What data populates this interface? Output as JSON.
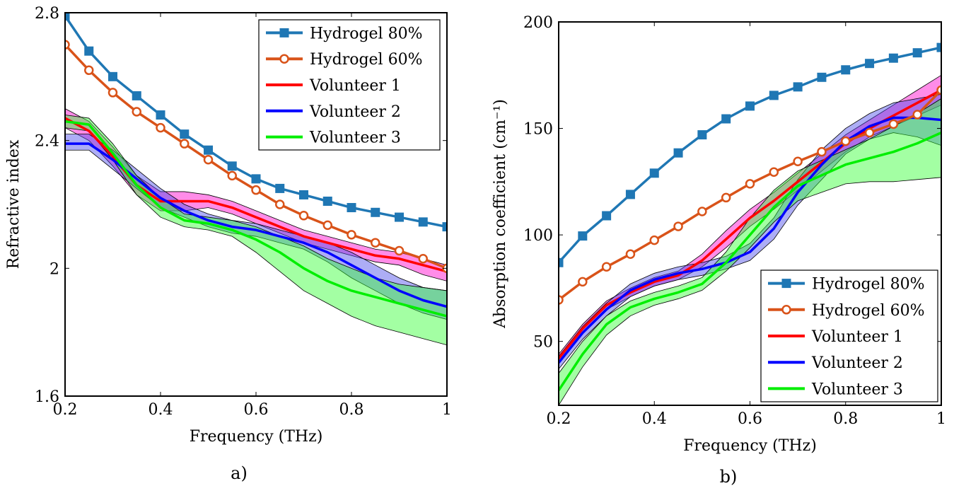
{
  "figure": {
    "label_a": "a)",
    "label_b": "b)"
  },
  "chart_data": [
    {
      "id": "a",
      "type": "line",
      "title": "",
      "xlabel": "Frequency (THz)",
      "ylabel": "Refractive index",
      "xlim": [
        0.2,
        1.0
      ],
      "ylim": [
        1.6,
        2.8
      ],
      "xticks": [
        0.2,
        0.4,
        0.6,
        0.8,
        1.0
      ],
      "xtick_labels": [
        "0.2",
        "0.4",
        "0.6",
        "0.8",
        "1"
      ],
      "yticks": [
        1.6,
        2.0,
        2.4,
        2.8
      ],
      "ytick_labels": [
        "1.6",
        "2",
        "2.4",
        "2.8"
      ],
      "grid": false,
      "legend_position": "top-right",
      "x": [
        0.2,
        0.25,
        0.3,
        0.35,
        0.4,
        0.45,
        0.5,
        0.55,
        0.6,
        0.65,
        0.7,
        0.75,
        0.8,
        0.85,
        0.9,
        0.95,
        1.0
      ],
      "series": [
        {
          "name": "Hydrogel 80%",
          "kind": "marker-square",
          "color": "#1f77b4",
          "values": [
            2.79,
            2.68,
            2.6,
            2.54,
            2.48,
            2.42,
            2.37,
            2.32,
            2.28,
            2.25,
            2.23,
            2.21,
            2.19,
            2.175,
            2.16,
            2.145,
            2.13
          ]
        },
        {
          "name": "Hydrogel 60%",
          "kind": "marker-circle",
          "color": "#d95319",
          "values": [
            2.7,
            2.62,
            2.55,
            2.49,
            2.44,
            2.39,
            2.34,
            2.29,
            2.245,
            2.2,
            2.165,
            2.135,
            2.105,
            2.08,
            2.055,
            2.03,
            2.0
          ]
        },
        {
          "name": "Volunteer 1",
          "kind": "band",
          "color": "#ff0000",
          "fill": "#ff00cc",
          "values": [
            2.47,
            2.43,
            2.35,
            2.26,
            2.21,
            2.21,
            2.21,
            2.19,
            2.16,
            2.13,
            2.1,
            2.08,
            2.06,
            2.04,
            2.03,
            2.01,
            1.99
          ],
          "upper": [
            2.5,
            2.46,
            2.38,
            2.29,
            2.24,
            2.24,
            2.23,
            2.21,
            2.18,
            2.15,
            2.12,
            2.1,
            2.08,
            2.06,
            2.05,
            2.03,
            2.01
          ],
          "lower": [
            2.44,
            2.4,
            2.32,
            2.23,
            2.18,
            2.18,
            2.19,
            2.17,
            2.14,
            2.11,
            2.08,
            2.06,
            2.04,
            2.02,
            2.01,
            1.98,
            1.96
          ]
        },
        {
          "name": "Volunteer 2",
          "kind": "band",
          "color": "#0000ff",
          "fill": "#4a4ae8",
          "values": [
            2.39,
            2.39,
            2.34,
            2.28,
            2.22,
            2.18,
            2.15,
            2.13,
            2.12,
            2.1,
            2.08,
            2.05,
            2.01,
            1.97,
            1.93,
            1.9,
            1.88
          ],
          "upper": [
            2.42,
            2.42,
            2.37,
            2.31,
            2.25,
            2.2,
            2.17,
            2.15,
            2.14,
            2.12,
            2.1,
            2.08,
            2.05,
            2.01,
            1.97,
            1.94,
            1.93
          ],
          "lower": [
            2.37,
            2.37,
            2.31,
            2.25,
            2.19,
            2.16,
            2.13,
            2.11,
            2.1,
            2.08,
            2.06,
            2.02,
            1.97,
            1.93,
            1.89,
            1.86,
            1.84
          ]
        },
        {
          "name": "Volunteer 3",
          "kind": "band",
          "color": "#00ee00",
          "fill": "#33ff33",
          "values": [
            2.46,
            2.45,
            2.36,
            2.26,
            2.19,
            2.15,
            2.14,
            2.12,
            2.09,
            2.05,
            2.0,
            1.96,
            1.93,
            1.91,
            1.89,
            1.87,
            1.85
          ],
          "upper": [
            2.48,
            2.47,
            2.39,
            2.29,
            2.22,
            2.17,
            2.16,
            2.15,
            2.13,
            2.1,
            2.07,
            2.03,
            2.0,
            1.97,
            1.95,
            1.94,
            1.93
          ],
          "lower": [
            2.44,
            2.43,
            2.34,
            2.23,
            2.16,
            2.13,
            2.12,
            2.1,
            2.05,
            1.99,
            1.93,
            1.89,
            1.85,
            1.82,
            1.8,
            1.78,
            1.76
          ]
        }
      ]
    },
    {
      "id": "b",
      "type": "line",
      "title": "",
      "xlabel": "Frequency (THz)",
      "ylabel": "Absorption coefficient (cm⁻¹)",
      "xlim": [
        0.2,
        1.0
      ],
      "ylim": [
        20,
        200
      ],
      "xticks": [
        0.2,
        0.4,
        0.6,
        0.8,
        1.0
      ],
      "xtick_labels": [
        "0.2",
        "0.4",
        "0.6",
        "0.8",
        "1"
      ],
      "yticks": [
        50,
        100,
        150,
        200
      ],
      "ytick_labels": [
        "50",
        "100",
        "150",
        "200"
      ],
      "grid": false,
      "legend_position": "bottom-right",
      "x": [
        0.2,
        0.25,
        0.3,
        0.35,
        0.4,
        0.45,
        0.5,
        0.55,
        0.6,
        0.65,
        0.7,
        0.75,
        0.8,
        0.85,
        0.9,
        0.95,
        1.0
      ],
      "series": [
        {
          "name": "Hydrogel 80%",
          "kind": "marker-square",
          "color": "#1f77b4",
          "values": [
            87,
            99.5,
            109,
            119,
            129,
            138.5,
            147,
            154.5,
            160.5,
            165.5,
            169.5,
            174,
            177.5,
            180.5,
            183,
            185.5,
            188
          ]
        },
        {
          "name": "Hydrogel 60%",
          "kind": "marker-circle",
          "color": "#d95319",
          "values": [
            69.5,
            78,
            85,
            91,
            97.5,
            104,
            111,
            117.5,
            124,
            129.5,
            134.5,
            139,
            144,
            148,
            152,
            156.5,
            168
          ]
        },
        {
          "name": "Volunteer 1",
          "kind": "band",
          "color": "#ff0000",
          "fill": "#ff00cc",
          "values": [
            42,
            56,
            67,
            73,
            78,
            81,
            88,
            98,
            108,
            116,
            125,
            134,
            143,
            150,
            156,
            162,
            168
          ],
          "upper": [
            44,
            58,
            69,
            75,
            80,
            83,
            91,
            102,
            112,
            120,
            129,
            138,
            147,
            154,
            161,
            168,
            175
          ],
          "lower": [
            40,
            54,
            65,
            71,
            76,
            79,
            85,
            94,
            104,
            112,
            121,
            130,
            139,
            146,
            151,
            156,
            161
          ]
        },
        {
          "name": "Volunteer 2",
          "kind": "band",
          "color": "#0000ff",
          "fill": "#4a4ae8",
          "values": [
            40,
            54,
            65,
            74,
            79,
            82,
            84,
            87,
            92,
            103,
            120,
            133,
            144,
            151,
            155,
            155,
            154
          ],
          "upper": [
            43,
            57,
            68,
            77,
            82,
            85,
            87,
            90,
            96,
            108,
            126,
            140,
            150,
            157,
            162,
            164,
            166
          ],
          "lower": [
            37,
            51,
            62,
            71,
            76,
            79,
            81,
            84,
            88,
            98,
            114,
            126,
            138,
            145,
            148,
            146,
            142
          ]
        },
        {
          "name": "Volunteer 3",
          "kind": "band",
          "color": "#00ee00",
          "fill": "#33ff33",
          "values": [
            27,
            44,
            58,
            66,
            70,
            73,
            77,
            87,
            100,
            113,
            123,
            128,
            133,
            136,
            139,
            143,
            148
          ],
          "upper": [
            35,
            50,
            62,
            69,
            73,
            76,
            80,
            92,
            108,
            121,
            130,
            135,
            140,
            145,
            151,
            157,
            164
          ],
          "lower": [
            20,
            38,
            53,
            62,
            67,
            70,
            74,
            83,
            94,
            106,
            116,
            120,
            124,
            125,
            125,
            126,
            127
          ]
        }
      ]
    }
  ]
}
